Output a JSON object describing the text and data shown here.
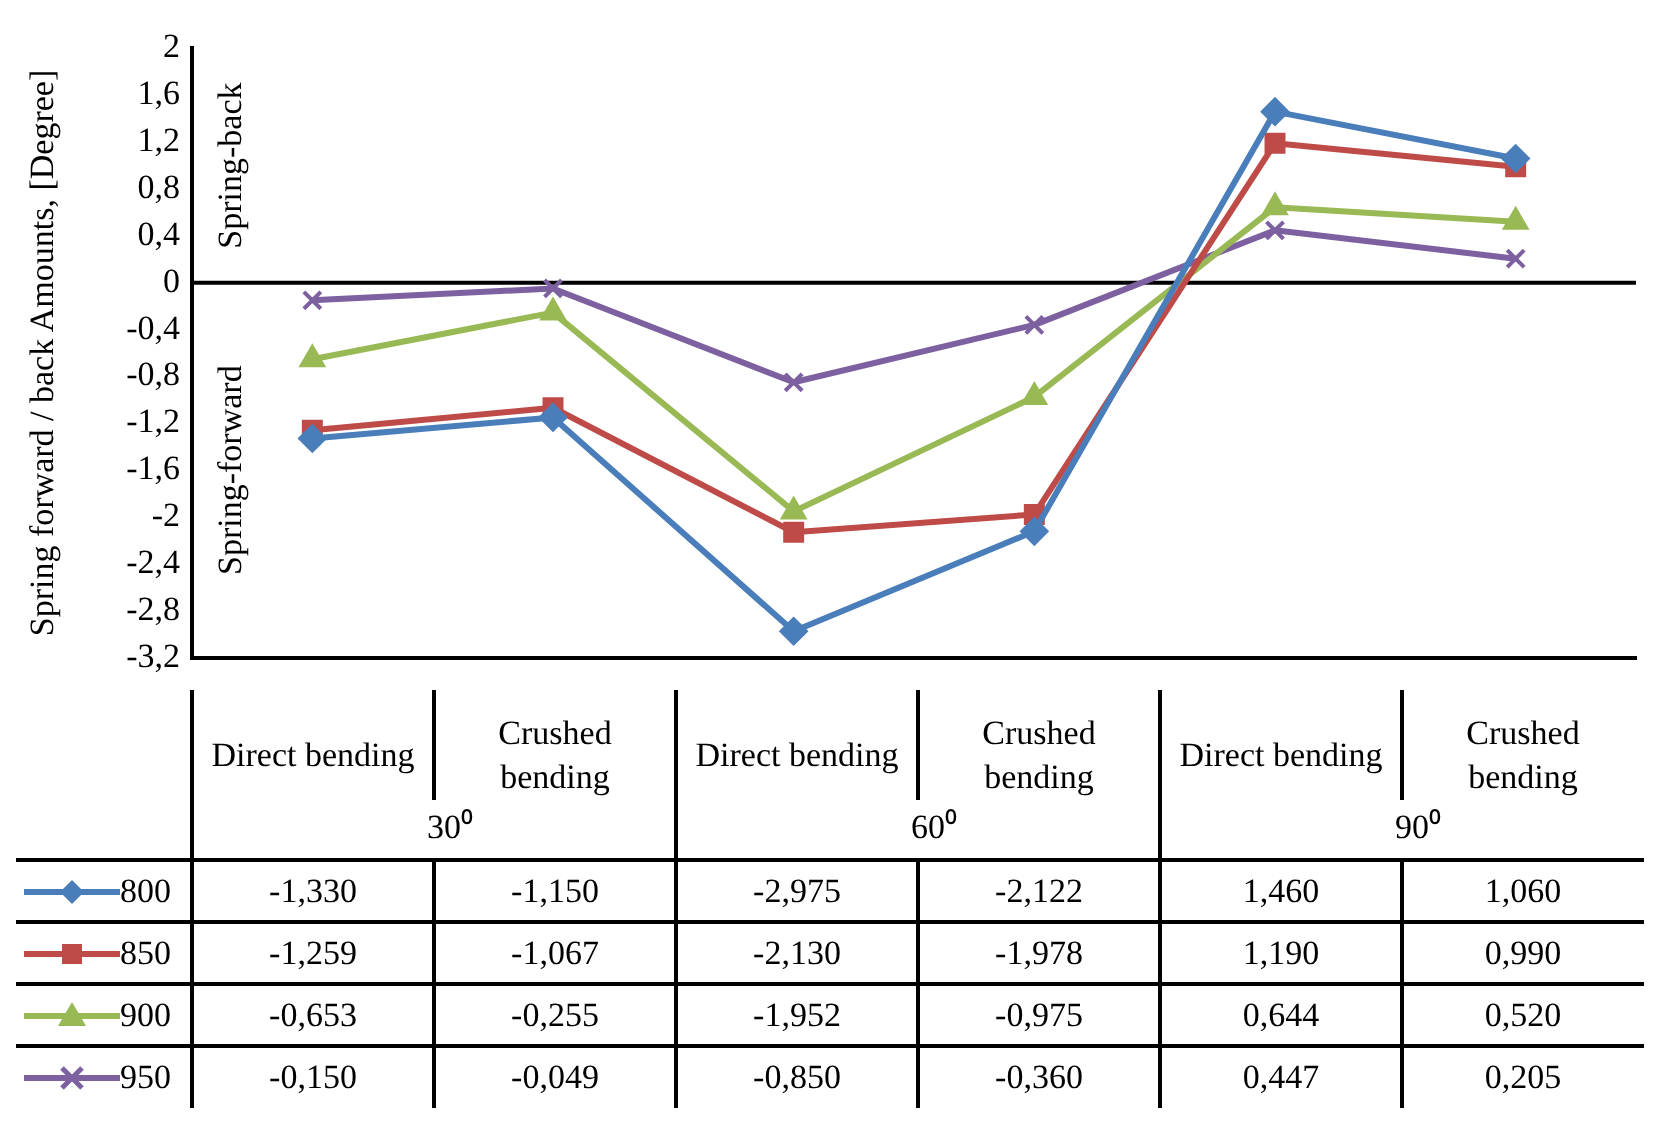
{
  "chart_data": {
    "type": "line",
    "ylabel": "Spring forward / back Amounts, [Degree]",
    "categories": [
      "Direct bending",
      "Crushed bending",
      "Direct bending",
      "Crushed bending",
      "Direct bending",
      "Crushed bending"
    ],
    "series": [
      {
        "name": "800",
        "color": "#4a7ebb",
        "marker": "diamond",
        "values": [
          -1.33,
          -1.15,
          -2.975,
          -2.122,
          1.46,
          1.06
        ],
        "value_labels": [
          "-1,330",
          "-1,150",
          "-2,975",
          "-2,122",
          "1,460",
          "1,060"
        ]
      },
      {
        "name": "850",
        "color": "#be4b48",
        "marker": "square",
        "values": [
          -1.259,
          -1.067,
          -2.13,
          -1.978,
          1.19,
          0.99
        ],
        "value_labels": [
          "-1,259",
          "-1,067",
          "-2,130",
          "-1,978",
          "1,190",
          "0,990"
        ]
      },
      {
        "name": "900",
        "color": "#98b954",
        "marker": "triangle",
        "values": [
          -0.653,
          -0.255,
          -1.952,
          -0.975,
          0.644,
          0.52
        ],
        "value_labels": [
          "-0,653",
          "-0,255",
          "-1,952",
          "-0,975",
          "0,644",
          "0,520"
        ]
      },
      {
        "name": "950",
        "color": "#7d60a0",
        "marker": "cross",
        "values": [
          -0.15,
          -0.049,
          -0.85,
          -0.36,
          0.447,
          0.205
        ],
        "value_labels": [
          "-0,150",
          "-0,049",
          "-0,850",
          "-0,360",
          "0,447",
          "0,205"
        ]
      }
    ],
    "ylim": [
      -3.2,
      2
    ],
    "yticks": [
      {
        "value": -3.2,
        "label": "-3,2"
      },
      {
        "value": -2.8,
        "label": "-2,8"
      },
      {
        "value": -2.4,
        "label": "-2,4"
      },
      -2,
      {
        "value": -1.6,
        "label": "-1,6"
      },
      {
        "value": -1.2,
        "label": "-1,2"
      },
      {
        "value": -0.8,
        "label": "-0,8"
      },
      {
        "value": -0.4,
        "label": "-0,4"
      },
      0,
      {
        "value": 0.4,
        "label": "0,4"
      },
      {
        "value": 0.8,
        "label": "0,8"
      },
      {
        "value": 1.2,
        "label": "1,2"
      },
      {
        "value": 1.6,
        "label": "1,6"
      },
      2
    ],
    "ref_lines": [
      {
        "axis": "y",
        "value": 0,
        "color": "#000000"
      }
    ],
    "annotations": [
      "Spring-back",
      "Spring-forward",
      "30⁰",
      "60⁰",
      "90⁰"
    ],
    "legend": "bottom left",
    "grid": false
  }
}
